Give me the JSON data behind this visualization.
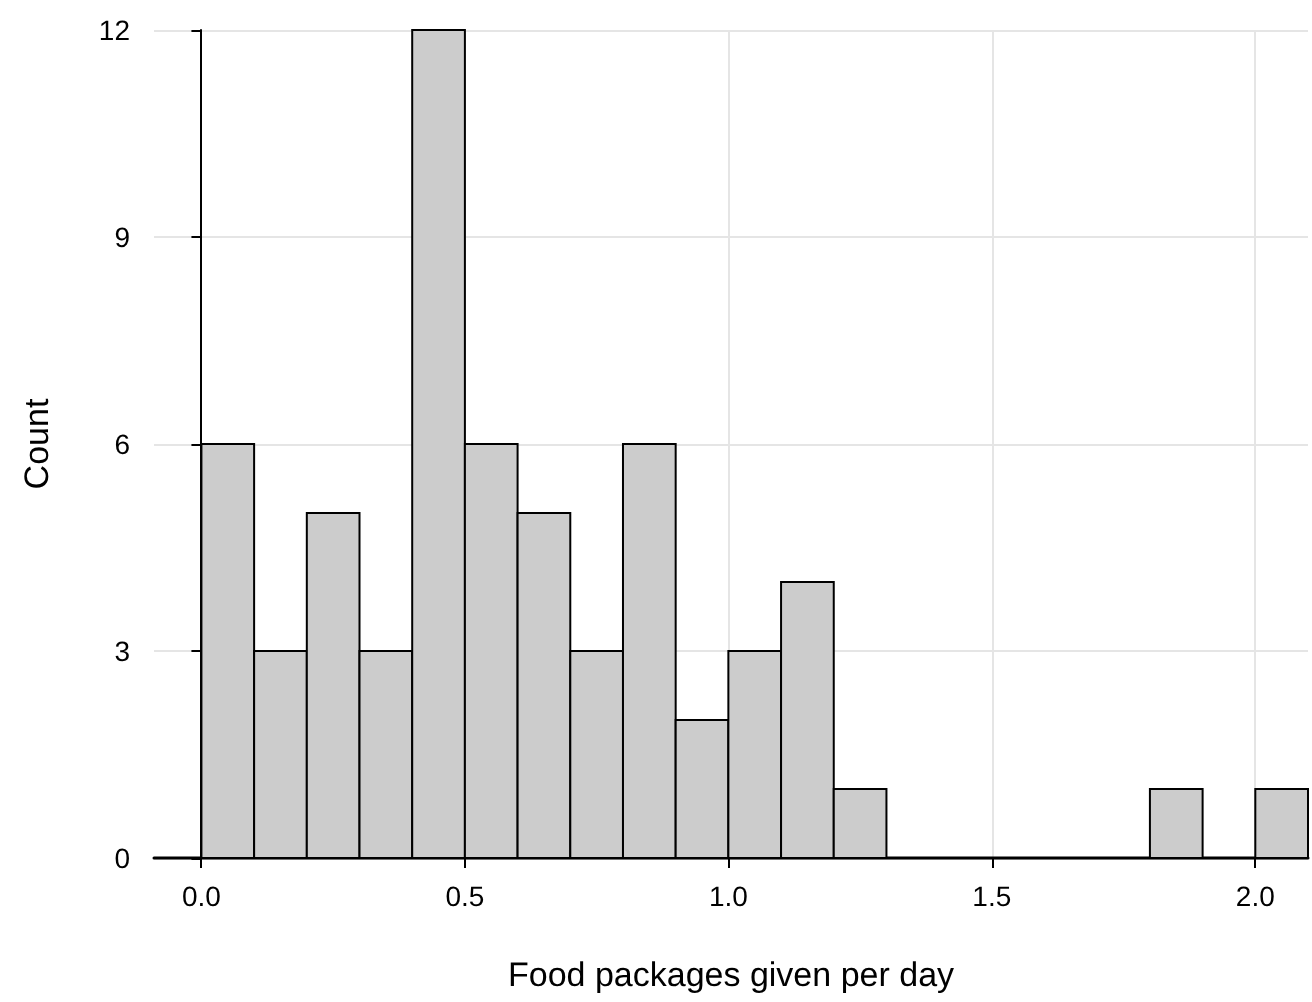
{
  "chart_data": {
    "type": "histogram",
    "xlabel": "Food packages given per day",
    "ylabel": "Count",
    "bins": [
      0,
      0.1,
      0.2,
      0.3,
      0.4,
      0.5,
      0.6,
      0.7,
      0.8,
      0.9,
      1.0,
      1.1,
      1.2,
      1.3,
      1.4,
      1.5,
      1.6,
      1.7,
      1.8,
      1.9,
      2.0,
      2.1
    ],
    "values": [
      6,
      3,
      5,
      3,
      12,
      6,
      5,
      3,
      6,
      2,
      3,
      4,
      1,
      0,
      0,
      0,
      0,
      0,
      1,
      0,
      1
    ],
    "color": "#cccccc",
    "xlim": [
      -0.09,
      2.1
    ],
    "xticks": [
      {
        "value": 0,
        "label": "0.0"
      },
      0.5,
      {
        "value": 1,
        "label": "1.0"
      },
      1.5,
      {
        "value": 2,
        "label": "2.0"
      }
    ],
    "ylim": [
      0,
      12
    ],
    "yticks": [
      0,
      3,
      6,
      9,
      12
    ],
    "grid": true
  }
}
